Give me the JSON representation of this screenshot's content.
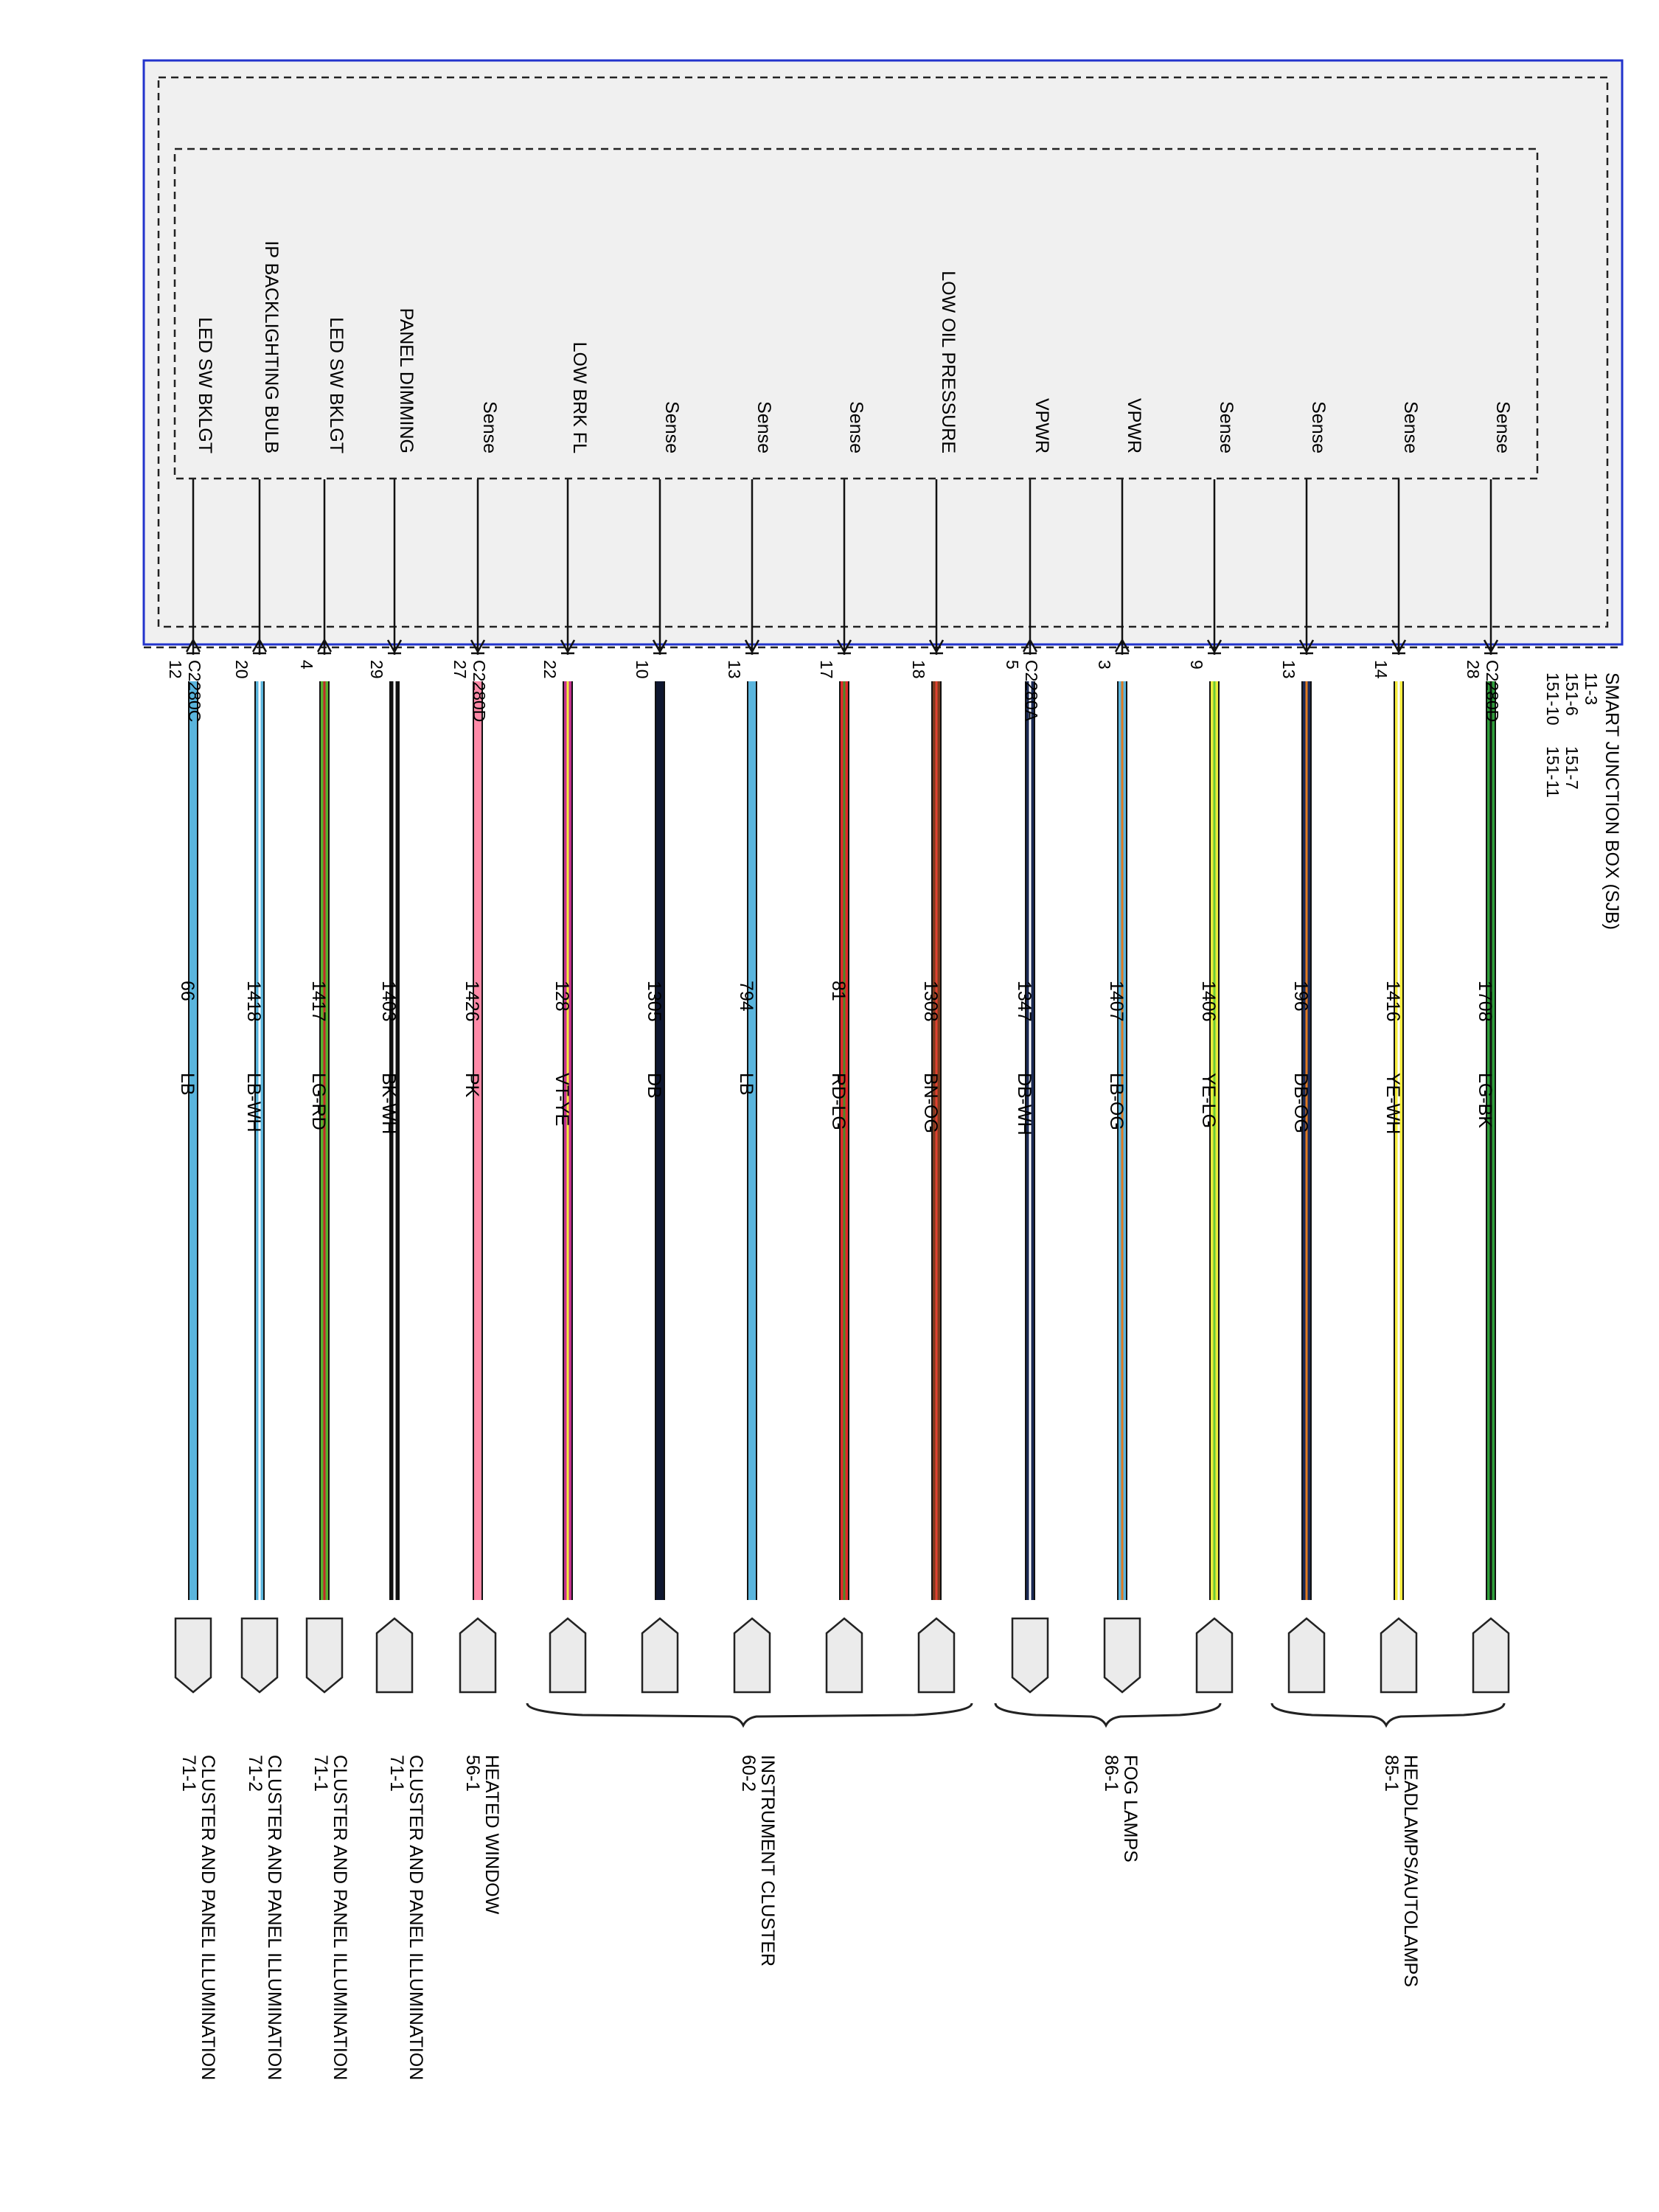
{
  "module": {
    "name": "SMART JUNCTION BOX (SJB)",
    "refs": [
      [
        "11-3",
        ""
      ],
      [
        "151-6",
        "151-7"
      ],
      [
        "151-10",
        "151-11"
      ]
    ]
  },
  "connectors": [
    "C2280D",
    "C2280A",
    "C2280D",
    "C2280C"
  ],
  "wires": [
    {
      "label": "Sense",
      "pin": "28",
      "circuit": "1708",
      "color_code": "LG-BK",
      "base": "#2e9e3a",
      "stripe": "#111111",
      "arrow": "down",
      "connector": "0"
    },
    {
      "label": "Sense",
      "pin": "14",
      "circuit": "1416",
      "color_code": "YE-WH",
      "base": "#f5ec3c",
      "stripe": "#ffffff",
      "arrow": "down"
    },
    {
      "label": "Sense",
      "pin": "13",
      "circuit": "196",
      "color_code": "DB-OG",
      "base": "#1b2a55",
      "stripe": "#e07a21",
      "arrow": "down"
    },
    {
      "label": "Sense",
      "pin": "9",
      "circuit": "1406",
      "color_code": "YE-LG",
      "base": "#e9ec3a",
      "stripe": "#6acb3a",
      "arrow": "down"
    },
    {
      "label": "VPWR",
      "pin": "3",
      "circuit": "1407",
      "color_code": "LB-OG",
      "base": "#5ab5dd",
      "stripe": "#e07a21",
      "arrow": "up"
    },
    {
      "label": "VPWR",
      "pin": "5",
      "circuit": "1347",
      "color_code": "DB-WH",
      "base": "#1b2a55",
      "stripe": "#ffffff",
      "arrow": "up",
      "connector": "1"
    },
    {
      "label": "LOW OIL PRESSURE",
      "pin": "18",
      "circuit": "1308",
      "color_code": "BN-OG",
      "base": "#7a3b1f",
      "stripe": "#e04030",
      "arrow": "down"
    },
    {
      "label": "Sense",
      "pin": "17",
      "circuit": "81",
      "color_code": "RD-LG",
      "base": "#e02a2a",
      "stripe": "#4a8a2a",
      "arrow": "down"
    },
    {
      "label": "Sense",
      "pin": "13",
      "circuit": "794",
      "color_code": "LB",
      "base": "#5ab5dd",
      "stripe": "",
      "arrow": "down"
    },
    {
      "label": "Sense",
      "pin": "10",
      "circuit": "1305",
      "color_code": "DB",
      "base": "#0f1730",
      "stripe": "",
      "arrow": "down"
    },
    {
      "label": "LOW BRK FL",
      "pin": "22",
      "circuit": "128",
      "color_code": "VT-YE",
      "base": "#c4318f",
      "stripe": "#f5ec3c",
      "arrow": "down"
    },
    {
      "label": "Sense",
      "pin": "27",
      "circuit": "1426",
      "color_code": "PK",
      "base": "#ff8aa8",
      "stripe": "",
      "arrow": "down",
      "connector": "2"
    },
    {
      "label": "PANEL DIMMING",
      "pin": "29",
      "circuit": "1403",
      "color_code": "BK-WH",
      "base": "#111111",
      "stripe": "#ffffff",
      "arrow": "down"
    },
    {
      "label": "LED SW BKLGT",
      "pin": "4",
      "circuit": "1417",
      "color_code": "LG-RD",
      "base": "#58b02e",
      "stripe": "#c22a2a",
      "arrow": "up"
    },
    {
      "label": "IP BACKLIGHTING BULB",
      "pin": "20",
      "circuit": "1418",
      "color_code": "LB-WH",
      "base": "#5ab5dd",
      "stripe": "#ffffff",
      "arrow": "up"
    },
    {
      "label": "LED SW BKLGT",
      "pin": "12",
      "circuit": "66",
      "color_code": "LB",
      "base": "#5ab5dd",
      "stripe": "",
      "arrow": "up",
      "connector": "3"
    }
  ],
  "destinations": [
    {
      "name": "HEADLAMPS/AUTOLAMPS",
      "ref": "85-1"
    },
    {
      "name": "FOG LAMPS",
      "ref": "86-1"
    },
    {
      "name": "INSTRUMENT CLUSTER",
      "ref": "60-2"
    },
    {
      "name": "HEATED WINDOW",
      "ref": "56-1"
    },
    {
      "name": "CLUSTER AND PANEL ILLUMINATION",
      "ref": "71-1"
    },
    {
      "name": "CLUSTER AND PANEL ILLUMINATION",
      "ref": "71-1"
    },
    {
      "name": "CLUSTER AND PANEL ILLUMINATION",
      "ref": "71-2"
    },
    {
      "name": "CLUSTER AND PANEL ILLUMINATION",
      "ref": "71-1"
    }
  ]
}
